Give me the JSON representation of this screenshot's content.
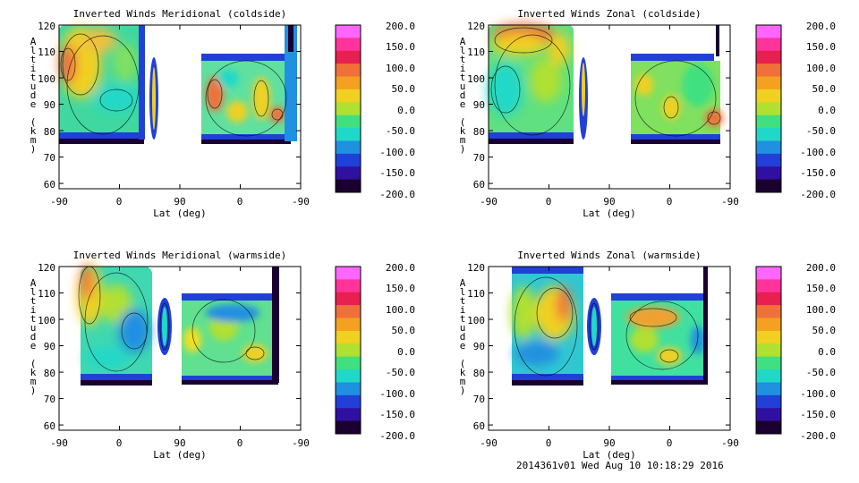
{
  "chart_data": [
    {
      "type": "heatmap",
      "title": "Inverted Winds Meridional (coldside)",
      "xlabel": "Lat (deg)",
      "ylabel": "Altitude (km)",
      "x_ticks": [
        "-90",
        "0",
        "90",
        "0",
        "-90"
      ],
      "y_ticks": [
        60,
        70,
        80,
        90,
        100,
        110,
        120
      ],
      "ylim": [
        58,
        120
      ],
      "colorbar_ticks": [
        "200.0",
        "150.0",
        "100.0",
        "50.0",
        "0.0",
        "-50.0",
        "-100.0",
        "-150.0",
        "-200.0"
      ],
      "colorbar_range": [
        -200,
        200
      ]
    },
    {
      "type": "heatmap",
      "title": "Inverted Winds Zonal (coldside)",
      "xlabel": "Lat (deg)",
      "ylabel": "Altitude (km)",
      "x_ticks": [
        "-90",
        "0",
        "90",
        "0",
        "-90"
      ],
      "y_ticks": [
        60,
        70,
        80,
        90,
        100,
        110,
        120
      ],
      "ylim": [
        58,
        120
      ],
      "colorbar_ticks": [
        "200.0",
        "150.0",
        "100.0",
        "50.0",
        "0.0",
        "-50.0",
        "-100.0",
        "-150.0",
        "-200.0"
      ],
      "colorbar_range": [
        -200,
        200
      ]
    },
    {
      "type": "heatmap",
      "title": "Inverted Winds Meridional (warmside)",
      "xlabel": "Lat (deg)",
      "ylabel": "Altitude (km)",
      "x_ticks": [
        "-90",
        "0",
        "90",
        "0",
        "-90"
      ],
      "y_ticks": [
        60,
        70,
        80,
        90,
        100,
        110,
        120
      ],
      "ylim": [
        58,
        120
      ],
      "colorbar_ticks": [
        "200.0",
        "150.0",
        "100.0",
        "50.0",
        "0.0",
        "-50.0",
        "-100.0",
        "-150.0",
        "-200.0"
      ],
      "colorbar_range": [
        -200,
        200
      ]
    },
    {
      "type": "heatmap",
      "title": "Inverted Winds Zonal (warmside)",
      "xlabel": "Lat (deg)",
      "ylabel": "Altitude (km)",
      "x_ticks": [
        "-90",
        "0",
        "90",
        "0",
        "-90"
      ],
      "y_ticks": [
        60,
        70,
        80,
        90,
        100,
        110,
        120
      ],
      "ylim": [
        58,
        120
      ],
      "colorbar_ticks": [
        "200.0",
        "150.0",
        "100.0",
        "50.0",
        "0.0",
        "-50.0",
        "-100.0",
        "-150.0",
        "-200.0"
      ],
      "colorbar_range": [
        -200,
        200
      ]
    }
  ],
  "colors": [
    "#ff66ff",
    "#ff3399",
    "#e8204f",
    "#f0703a",
    "#f4a020",
    "#f0d020",
    "#b0e030",
    "#40e080",
    "#20d8c8",
    "#2090e0",
    "#2040d8",
    "#3010a0",
    "#1a0030"
  ],
  "footer": "2014361v01 Wed Aug 10 10:18:29 2016"
}
